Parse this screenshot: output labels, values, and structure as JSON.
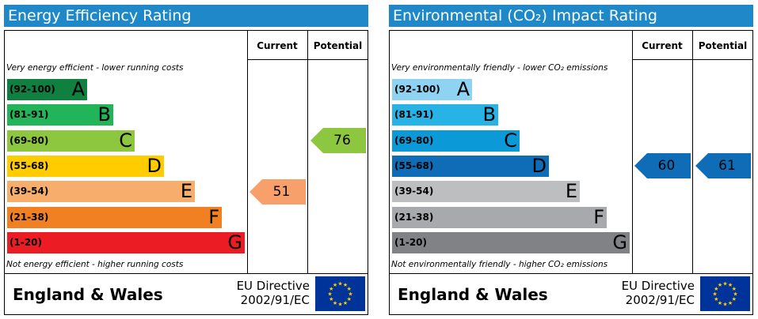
{
  "chart_data": [
    {
      "type": "bar",
      "title": "Energy Efficiency Rating",
      "columns": [
        "Current",
        "Potential"
      ],
      "top_note": "Very energy efficient - lower running costs",
      "bottom_note": "Not energy efficient - higher running costs",
      "bands": [
        {
          "range": "(92-100)",
          "letter": "A",
          "color": "#0f8040",
          "text_color": "#000000"
        },
        {
          "range": "(81-91)",
          "letter": "B",
          "color": "#22b459",
          "text_color": "#000000"
        },
        {
          "range": "(69-80)",
          "letter": "C",
          "color": "#8dc63f",
          "text_color": "#000000"
        },
        {
          "range": "(55-68)",
          "letter": "D",
          "color": "#ffcc00",
          "text_color": "#000000"
        },
        {
          "range": "(39-54)",
          "letter": "E",
          "color": "#f7ad6b",
          "text_color": "#000000"
        },
        {
          "range": "(21-38)",
          "letter": "F",
          "color": "#f08022",
          "text_color": "#000000"
        },
        {
          "range": "(1-20)",
          "letter": "G",
          "color": "#ec1c24",
          "text_color": "#000000"
        }
      ],
      "current": {
        "value": "51",
        "band": "E",
        "color": "#f7a06b",
        "text_color": "#000000"
      },
      "potential": {
        "value": "76",
        "band": "C",
        "color": "#8dc63f",
        "text_color": "#000000"
      },
      "footer": {
        "region": "England & Wales",
        "directive_line1": "EU Directive",
        "directive_line2": "2002/91/EC"
      },
      "title_color": "#1e88c8"
    },
    {
      "type": "bar",
      "title": "Environmental (CO₂) Impact Rating",
      "columns": [
        "Current",
        "Potential"
      ],
      "top_note": "Very environmentally friendly - lower CO₂ emissions",
      "bottom_note": "Not environmentally friendly - higher CO₂ emissions",
      "bands": [
        {
          "range": "(92-100)",
          "letter": "A",
          "color": "#8ed3f2",
          "text_color": "#000000"
        },
        {
          "range": "(81-91)",
          "letter": "B",
          "color": "#27b3e6",
          "text_color": "#000000"
        },
        {
          "range": "(69-80)",
          "letter": "C",
          "color": "#0b9ad7",
          "text_color": "#000000"
        },
        {
          "range": "(55-68)",
          "letter": "D",
          "color": "#0f6cb7",
          "text_color": "#000000"
        },
        {
          "range": "(39-54)",
          "letter": "E",
          "color": "#bcbec0",
          "text_color": "#000000"
        },
        {
          "range": "(21-38)",
          "letter": "F",
          "color": "#a7a9ac",
          "text_color": "#000000"
        },
        {
          "range": "(1-20)",
          "letter": "G",
          "color": "#808285",
          "text_color": "#000000"
        }
      ],
      "current": {
        "value": "60",
        "band": "D",
        "color": "#0f6cb7",
        "text_color": "#000000"
      },
      "potential": {
        "value": "61",
        "band": "D",
        "color": "#0f6cb7",
        "text_color": "#000000"
      },
      "footer": {
        "region": "England & Wales",
        "directive_line1": "EU Directive",
        "directive_line2": "2002/91/EC"
      },
      "title_color": "#1e88c8"
    }
  ]
}
